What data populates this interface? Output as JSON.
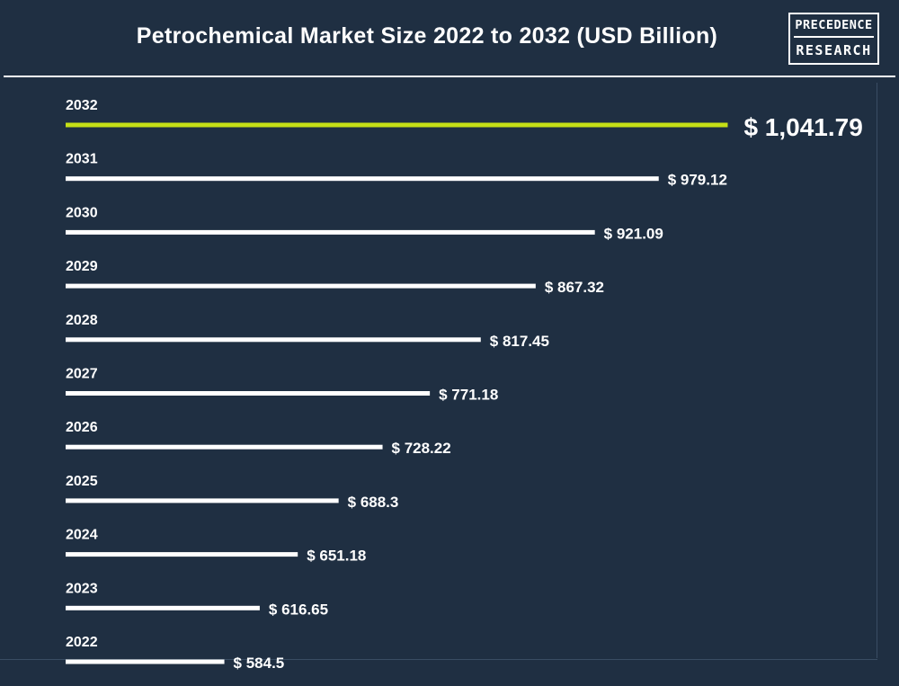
{
  "header": {
    "title": "Petrochemical Market Size 2022 to 2032 (USD Billion)",
    "logo_line1": "PRECEDENCE",
    "logo_line2": "RESEARCH"
  },
  "colors": {
    "background": "#1f2f42",
    "bar": "#ffffff",
    "highlight_bar": "#c5df16",
    "text": "#ffffff"
  },
  "chart_data": {
    "type": "bar",
    "orientation": "horizontal",
    "title": "Petrochemical Market Size 2022 to 2032 (USD Billion)",
    "categories": [
      "2032",
      "2031",
      "2030",
      "2029",
      "2028",
      "2027",
      "2026",
      "2025",
      "2024",
      "2023",
      "2022"
    ],
    "values": [
      1041.79,
      979.12,
      921.09,
      867.32,
      817.45,
      771.18,
      728.22,
      688.3,
      651.18,
      616.65,
      584.5
    ],
    "value_labels": [
      "$ 1,041.79",
      "$ 979.12",
      "$ 921.09",
      "$ 867.32",
      "$ 817.45",
      "$ 771.18",
      "$ 728.22",
      "$ 688.3",
      "$ 651.18",
      "$ 616.65",
      "$ 584.5"
    ],
    "highlight_category": "2032",
    "xlabel": "",
    "ylabel": "",
    "grid": false,
    "legend": "none"
  }
}
